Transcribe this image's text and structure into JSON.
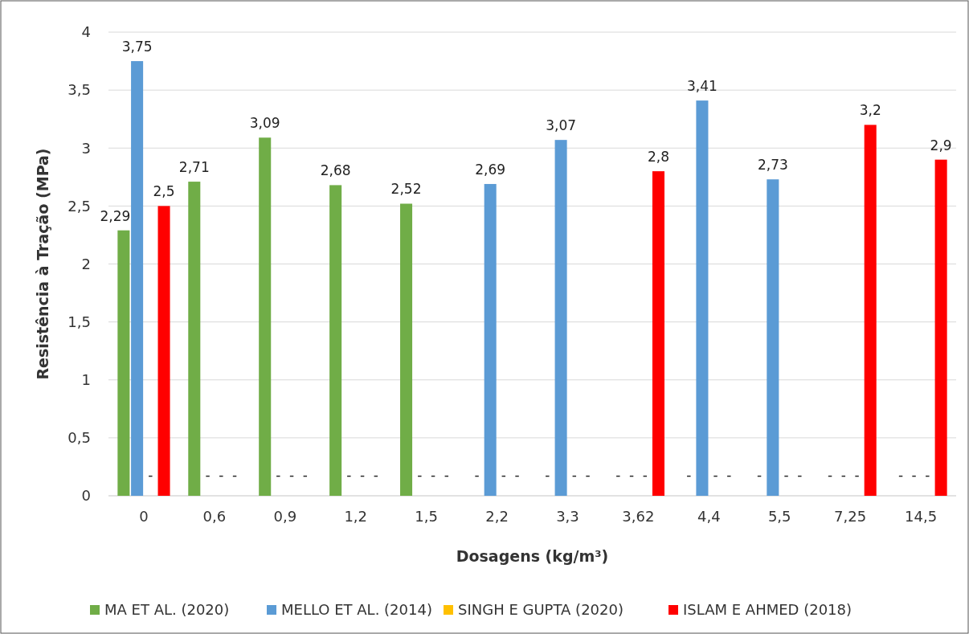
{
  "chart_data": {
    "type": "bar",
    "xlabel": "Dosagens (kg/m³)",
    "ylabel": "Resistência à Tração (MPa)",
    "categories": [
      "0",
      "0,6",
      "0,9",
      "1,2",
      "1,5",
      "2,2",
      "3,3",
      "3,62",
      "4,4",
      "5,5",
      "7,25",
      "14,5"
    ],
    "series": [
      {
        "name": "MA ET AL. (2020)",
        "color": "#70ad47",
        "values": [
          2.29,
          2.71,
          3.09,
          2.68,
          2.52,
          null,
          null,
          null,
          null,
          null,
          null,
          null
        ],
        "value_labels": [
          "2,29",
          "2,71",
          "3,09",
          "2,68",
          "2,52",
          "-",
          "-",
          "-",
          "-",
          "-",
          "-",
          "-"
        ]
      },
      {
        "name": "MELLO ET AL. (2014)",
        "color": "#5b9bd5",
        "values": [
          3.75,
          null,
          null,
          null,
          null,
          2.69,
          3.07,
          null,
          3.41,
          2.73,
          null,
          null
        ],
        "value_labels": [
          "3,75",
          "-",
          "-",
          "-",
          "-",
          "2,69",
          "3,07",
          "-",
          "3,41",
          "2,73",
          "-",
          "-"
        ]
      },
      {
        "name": "SINGH E GUPTA (2020)",
        "color": "#ffc000",
        "values": [
          null,
          null,
          null,
          null,
          null,
          null,
          null,
          null,
          null,
          null,
          null,
          null
        ],
        "value_labels": [
          "-",
          "-",
          "-",
          "-",
          "-",
          "-",
          "-",
          "-",
          "-",
          "-",
          "-",
          "-"
        ]
      },
      {
        "name": "ISLAM E AHMED (2018)",
        "color": "#ff0000",
        "values": [
          2.5,
          null,
          null,
          null,
          null,
          null,
          null,
          2.8,
          null,
          null,
          3.2,
          2.9
        ],
        "value_labels": [
          "2,5",
          "-",
          "-",
          "-",
          "-",
          "-",
          "-",
          "2,8",
          "-",
          "-",
          "3,2",
          "2,9"
        ]
      }
    ],
    "ylim": [
      0,
      4
    ],
    "yticks": [
      0,
      {
        "value": 0.5,
        "label": "0,5"
      },
      1,
      {
        "value": 1.5,
        "label": "1,5"
      },
      2,
      {
        "value": 2.5,
        "label": "2,5"
      },
      3,
      {
        "value": 3.5,
        "label": "3,5"
      },
      4
    ],
    "grid": "y",
    "legend": "bottom"
  }
}
